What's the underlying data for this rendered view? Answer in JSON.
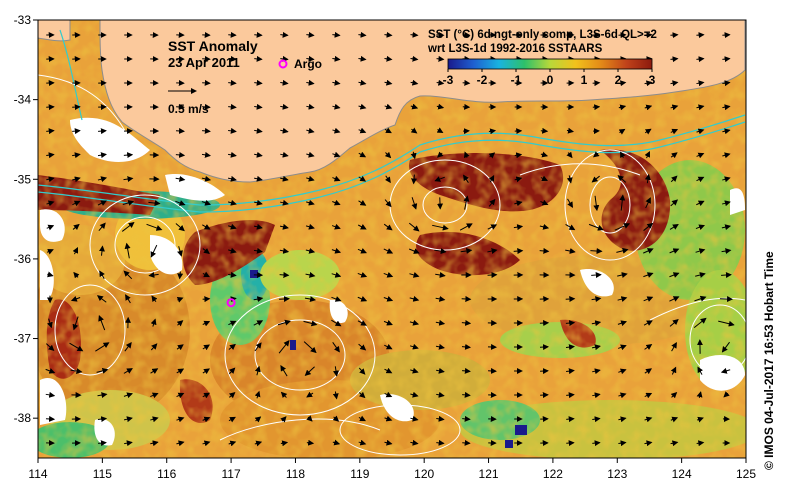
{
  "map": {
    "title": "SST Anomaly",
    "date": "23 Apr 2011",
    "argo_label": "Argo",
    "scale_label": "0.5 m/s",
    "legend_line1": "SST (°C) 6d ngt-only comp, L3S-6d QL>=2",
    "legend_line2": "wrt L3S-1d 1992-2016 SSTAARS",
    "credit": "© IMOS 04-Jul-2017 16:53 Hobart Time"
  },
  "chart_data": {
    "type": "heatmap",
    "title": "SST Anomaly",
    "colorbar": {
      "ticks": [
        "-3",
        "-2",
        "-1",
        "0",
        "1",
        "2",
        "3"
      ],
      "colors": [
        "#1a1a8c",
        "#1f5fd0",
        "#19b3e0",
        "#2ec06a",
        "#b8d83a",
        "#f2c21c",
        "#e38a18",
        "#c0421a",
        "#8c1a0e"
      ]
    },
    "x_ticks": [
      "114",
      "115",
      "116",
      "117",
      "118",
      "119",
      "120",
      "121",
      "122",
      "123",
      "124",
      "125"
    ],
    "y_ticks": [
      "-33",
      "-34",
      "-35",
      "-36",
      "-37",
      "-38"
    ],
    "xlim": [
      114,
      125
    ],
    "ylim": [
      -38.5,
      -33
    ],
    "argo_position": {
      "lon": 117.0,
      "lat": -36.55
    },
    "colors": {
      "land": "#fbc99c",
      "coast": "#8c8c8c",
      "argo": "#ff00ff",
      "contour": "#ffffff",
      "shelf_contour": "#33cccc"
    }
  }
}
